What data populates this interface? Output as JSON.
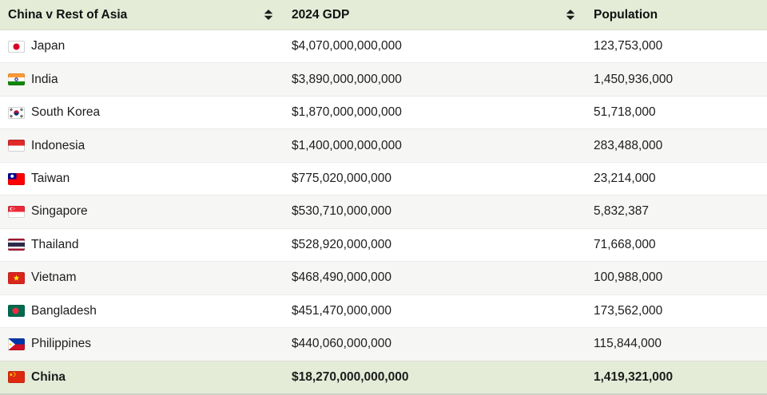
{
  "table": {
    "title": "China v Rest of Asia",
    "columns": [
      {
        "label": "China v Rest of Asia",
        "sortable": true
      },
      {
        "label": "2024 GDP",
        "sortable": true
      },
      {
        "label": "Population",
        "sortable": false
      }
    ],
    "rows": [
      {
        "country": "Japan",
        "flag": "jp",
        "gdp": "$4,070,000,000,000",
        "population": "123,753,000"
      },
      {
        "country": "India",
        "flag": "in",
        "gdp": "$3,890,000,000,000",
        "population": "1,450,936,000"
      },
      {
        "country": "South Korea",
        "flag": "kr",
        "gdp": "$1,870,000,000,000",
        "population": "51,718,000"
      },
      {
        "country": "Indonesia",
        "flag": "id",
        "gdp": "$1,400,000,000,000",
        "population": "283,488,000"
      },
      {
        "country": "Taiwan",
        "flag": "tw",
        "gdp": "$775,020,000,000",
        "population": "23,214,000"
      },
      {
        "country": "Singapore",
        "flag": "sg",
        "gdp": "$530,710,000,000",
        "population": "5,832,387"
      },
      {
        "country": "Thailand",
        "flag": "th",
        "gdp": "$528,920,000,000",
        "population": "71,668,000"
      },
      {
        "country": "Vietnam",
        "flag": "vn",
        "gdp": "$468,490,000,000",
        "population": "100,988,000"
      },
      {
        "country": "Bangladesh",
        "flag": "bd",
        "gdp": "$451,470,000,000",
        "population": "173,562,000"
      },
      {
        "country": "Philippines",
        "flag": "ph",
        "gdp": "$440,060,000,000",
        "population": "115,844,000"
      },
      {
        "country": "China",
        "flag": "cn",
        "gdp": "$18,270,000,000,000",
        "population": "1,419,321,000",
        "highlight": true
      }
    ]
  },
  "icons": {
    "sort": "sort-arrows-icon"
  },
  "colors": {
    "header_bg": "#e4ecd8",
    "highlight_bg": "#e4ecd8",
    "alt_row_bg": "#f6f6f4",
    "text": "#1c1c1c",
    "row_border": "#ebebe9"
  }
}
